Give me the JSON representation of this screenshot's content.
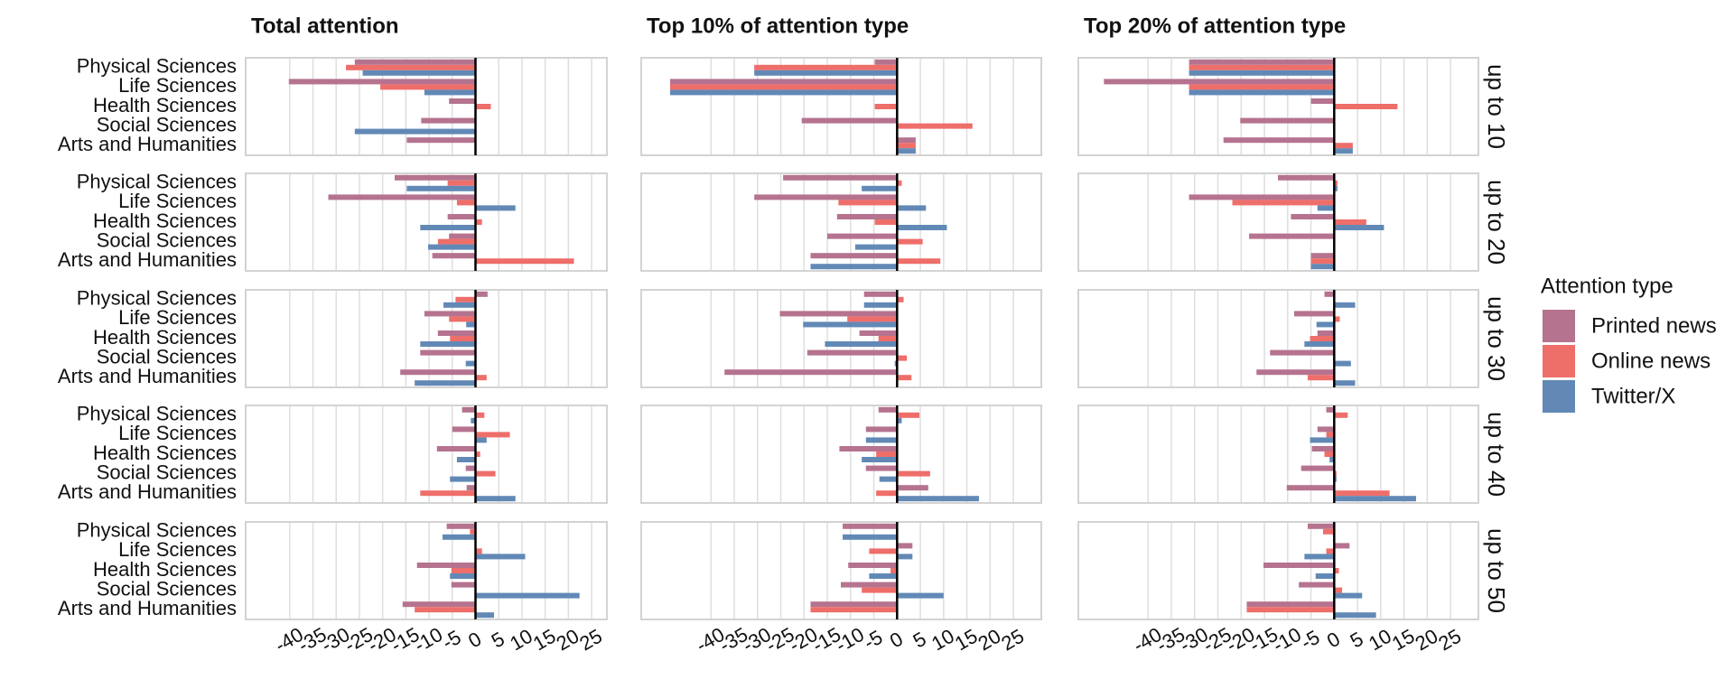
{
  "chart_data": {
    "type": "bar",
    "orientation": "horizontal",
    "categories": [
      "Physical Sciences",
      "Life Sciences",
      "Health Sciences",
      "Social Sciences",
      "Arts and Humanities"
    ],
    "facet_rows": [
      "up to 10",
      "up to 20",
      "up to 30",
      "up to 40",
      "up to 50"
    ],
    "legend_title": "Attention type",
    "series": [
      {
        "name": "Printed news",
        "color": "#b5738f"
      },
      {
        "name": "Online news",
        "color": "#ee6e6a"
      },
      {
        "name": "Twitter/X",
        "color": "#6289b6"
      }
    ],
    "grid": true,
    "columns": [
      {
        "title": "Total attention",
        "xlim": [
          -49.5,
          28.3
        ],
        "xticks": [
          -40,
          -35,
          -30,
          -25,
          -20,
          -15,
          -10,
          -5,
          0,
          5,
          10,
          15,
          20,
          25
        ],
        "rows": [
          {
            "series": [
              {
                "values": [
                  -26,
                  -40.2,
                  -5.7,
                  -11.7,
                  -14.8
                ]
              },
              {
                "values": [
                  -27.9,
                  -20.5,
                  3.3,
                  0,
                  0
                ]
              },
              {
                "values": [
                  -24.3,
                  -11,
                  0,
                  -26,
                  0
                ]
              }
            ]
          },
          {
            "series": [
              {
                "values": [
                  -17.4,
                  -31.7,
                  -6,
                  -5.7,
                  -9.3
                ]
              },
              {
                "values": [
                  -6,
                  -4,
                  1.4,
                  -8.1,
                  21.2
                ]
              },
              {
                "values": [
                  -14.8,
                  8.6,
                  -11.9,
                  -10.2,
                  0
                ]
              }
            ]
          },
          {
            "series": [
              {
                "values": [
                  2.6,
                  -11,
                  -8.1,
                  -11.9,
                  -16.2
                ]
              },
              {
                "values": [
                  -4.3,
                  -5.7,
                  -5.5,
                  0,
                  2.4
                ]
              },
              {
                "values": [
                  -6.9,
                  -2,
                  -11.9,
                  -2.1,
                  -13.1
                ]
              }
            ]
          },
          {
            "series": [
              {
                "values": [
                  -2.9,
                  -5,
                  -8.3,
                  -2.1,
                  -1.9
                ]
              },
              {
                "values": [
                  1.9,
                  7.4,
                  1,
                  4.3,
                  -11.9
                ]
              },
              {
                "values": [
                  -1,
                  2.4,
                  -4,
                  -5.5,
                  8.6
                ]
              }
            ]
          },
          {
            "series": [
              {
                "values": [
                  -6.2,
                  0,
                  -12.6,
                  -5.2,
                  -15.7
                ]
              },
              {
                "values": [
                  -1.2,
                  1.4,
                  -5.2,
                  0,
                  -13.1
                ]
              },
              {
                "values": [
                  -7.1,
                  10.7,
                  -5.5,
                  22.4,
                  4
                ]
              }
            ]
          }
        ]
      },
      {
        "title": "Top 10% of attention type",
        "xlim": [
          -55,
          31
        ],
        "xticks": [
          -40,
          -35,
          -30,
          -25,
          -20,
          -15,
          -10,
          -5,
          0,
          5,
          10,
          15,
          20,
          25
        ],
        "rows": [
          {
            "series": [
              {
                "values": [
                  -4.8,
                  -48.8,
                  0,
                  -20.5,
                  4
                ]
              },
              {
                "values": [
                  -30.7,
                  -48.8,
                  -4.8,
                  16.2,
                  4
                ]
              },
              {
                "values": [
                  -30.7,
                  -48.8,
                  0,
                  0,
                  4
                ]
              }
            ]
          },
          {
            "series": [
              {
                "values": [
                  -24.5,
                  -30.7,
                  -12.9,
                  -15,
                  -18.6
                ]
              },
              {
                "values": [
                  1,
                  -12.6,
                  -4.8,
                  5.5,
                  9.3
                ]
              },
              {
                "values": [
                  -7.6,
                  6.2,
                  10.7,
                  -9,
                  -18.6
                ]
              }
            ]
          },
          {
            "series": [
              {
                "values": [
                  -7.1,
                  -25.2,
                  -8.1,
                  -19.3,
                  -37.1
                ]
              },
              {
                "values": [
                  1.4,
                  -10.7,
                  -4,
                  2.1,
                  3.1
                ]
              },
              {
                "values": [
                  -7.1,
                  -20.2,
                  -15.5,
                  -0.5,
                  0
                ]
              }
            ]
          },
          {
            "series": [
              {
                "values": [
                  -4,
                  -6.7,
                  -12.4,
                  -6.7,
                  6.7
                ]
              },
              {
                "values": [
                  4.8,
                  0,
                  -4.5,
                  7.1,
                  -4.5
                ]
              },
              {
                "values": [
                  1,
                  -6.7,
                  -7.6,
                  -3.8,
                  17.6
                ]
              }
            ]
          },
          {
            "series": [
              {
                "values": [
                  -11.7,
                  3.3,
                  -10.5,
                  -12.1,
                  -18.6
                ]
              },
              {
                "values": [
                  0,
                  -6,
                  -1.4,
                  -7.6,
                  -18.6
                ]
              },
              {
                "values": [
                  -11.7,
                  3.3,
                  -6,
                  10,
                  0
                ]
              }
            ]
          }
        ]
      },
      {
        "title": "Top 20% of attention type",
        "xlim": [
          -55,
          31
        ],
        "xticks": [
          -40,
          -35,
          -30,
          -25,
          -20,
          -15,
          -10,
          -5,
          0,
          5,
          10,
          15,
          20,
          25
        ],
        "rows": [
          {
            "series": [
              {
                "values": [
                  -31.2,
                  -49.5,
                  -5,
                  -20.2,
                  -23.8
                ]
              },
              {
                "values": [
                  -31.2,
                  -31.2,
                  13.6,
                  0,
                  4
                ]
              },
              {
                "values": [
                  -31.2,
                  -31.2,
                  0,
                  0,
                  4
                ]
              }
            ]
          },
          {
            "series": [
              {
                "values": [
                  -12.1,
                  -31.2,
                  -9.3,
                  -18.3,
                  -5
                ]
              },
              {
                "values": [
                  0.7,
                  -21.9,
                  6.9,
                  0,
                  -5
                ]
              },
              {
                "values": [
                  0.7,
                  -3.6,
                  10.7,
                  0,
                  -5
                ]
              }
            ]
          },
          {
            "series": [
              {
                "values": [
                  -2.1,
                  -8.6,
                  -3.6,
                  -13.8,
                  -16.7
                ]
              },
              {
                "values": [
                  0,
                  1.2,
                  -5.2,
                  0,
                  -5.7
                ]
              },
              {
                "values": [
                  4.5,
                  -3.8,
                  -6.4,
                  3.6,
                  4.5
                ]
              }
            ]
          },
          {
            "series": [
              {
                "values": [
                  -1.7,
                  -3.6,
                  -4.8,
                  -7.1,
                  -10.2
                ]
              },
              {
                "values": [
                  2.9,
                  -1.7,
                  -2.1,
                  0.5,
                  11.9
                ]
              },
              {
                "values": [
                  0,
                  -5.2,
                  -1,
                  0.5,
                  17.6
                ]
              }
            ]
          },
          {
            "series": [
              {
                "values": [
                  -5.7,
                  3.3,
                  -15.2,
                  -7.6,
                  -18.8
                ]
              },
              {
                "values": [
                  -2.4,
                  -1.7,
                  1,
                  1.7,
                  -18.8
                ]
              },
              {
                "values": [
                  0,
                  -6.4,
                  -4,
                  6,
                  9
                ]
              }
            ]
          }
        ]
      }
    ]
  }
}
